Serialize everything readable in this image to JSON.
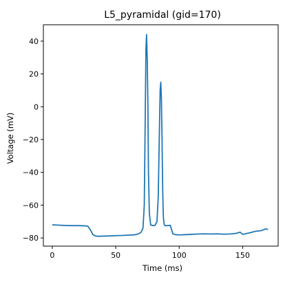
{
  "chart_data": {
    "type": "line",
    "title": "L5_pyramidal (gid=170)",
    "xlabel": "Time (ms)",
    "ylabel": "Voltage (mV)",
    "xlim": [
      -7,
      178
    ],
    "ylim": [
      -85,
      50
    ],
    "xticks": [
      0,
      50,
      100,
      150
    ],
    "yticks": [
      -80,
      -60,
      -40,
      -20,
      0,
      20,
      40
    ],
    "grid": false,
    "colors": {
      "line": "#1f77b4",
      "axis": "#000000"
    },
    "series": [
      {
        "x": [
          0,
          5,
          10,
          15,
          20,
          25,
          28,
          30,
          32,
          34,
          36,
          40,
          45,
          50,
          55,
          60,
          65,
          68,
          70,
          71.5,
          72.5,
          73.2,
          73.8,
          74.3,
          74.8,
          75.3,
          75.8,
          76.5,
          77.5,
          79,
          81,
          82.5,
          83.5,
          84.3,
          85,
          85.5,
          86,
          86.5,
          87,
          87.5,
          88.2,
          89,
          91,
          93,
          94,
          95,
          97,
          100,
          105,
          110,
          115,
          120,
          125,
          130,
          135,
          140,
          145,
          148,
          150,
          155,
          160,
          165,
          168,
          170
        ],
        "y": [
          -72,
          -72.2,
          -72.4,
          -72.5,
          -72.5,
          -72.6,
          -72.8,
          -75,
          -78,
          -78.8,
          -79,
          -78.9,
          -78.8,
          -78.6,
          -78.5,
          -78.3,
          -78.1,
          -77.5,
          -76.5,
          -74,
          -60,
          -10,
          35,
          44,
          30,
          5,
          -40,
          -65,
          -72,
          -72.5,
          -72.3,
          -70,
          -55,
          -20,
          10,
          15,
          5,
          -20,
          -50,
          -67,
          -72,
          -72.5,
          -72.5,
          -72.3,
          -75,
          -77.5,
          -78,
          -78.2,
          -78,
          -77.8,
          -77.6,
          -77.5,
          -77.6,
          -77.5,
          -77.7,
          -77.6,
          -77.2,
          -76.5,
          -77.8,
          -77,
          -76,
          -75.5,
          -74.5,
          -74.8
        ]
      }
    ]
  }
}
